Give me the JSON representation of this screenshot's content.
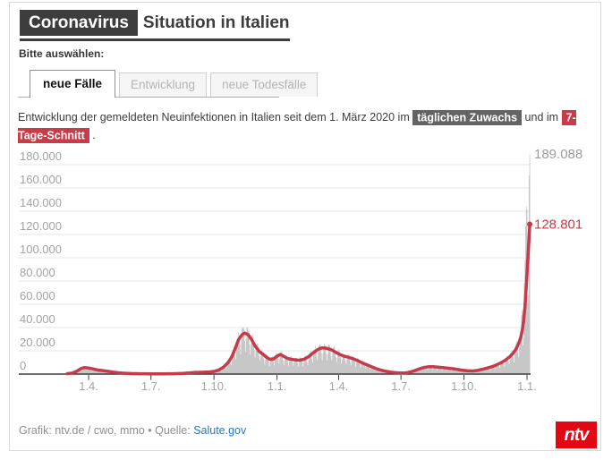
{
  "header": {
    "badge": "Coronavirus",
    "title": "Situation in Italien"
  },
  "prompt": "Bitte auswählen:",
  "tabs": [
    {
      "label": "neue Fälle",
      "active": true
    },
    {
      "label": "Entwicklung",
      "active": false
    },
    {
      "label": "neue Todesfälle",
      "active": false
    }
  ],
  "description": {
    "segments": [
      {
        "text": "Entwicklung der gemeldeten Neuinfektionen in Italien seit dem 1. März 2020 im "
      },
      {
        "highlight": "täglichen Zuwachs",
        "color": "#636363"
      },
      {
        "text": " und im "
      },
      {
        "highlight": "7-Tage-Schnitt",
        "color": "#c93b47"
      },
      {
        "text": " ."
      }
    ]
  },
  "chart_data": {
    "type": "bar",
    "subtype": "daily-bars-with-7day-average-line",
    "x_unit": "days since 1. März 2020",
    "x_domain": [
      0,
      675
    ],
    "ylim": [
      0,
      190000
    ],
    "grid": true,
    "y_ticks": [
      {
        "value": 0,
        "label": "0"
      },
      {
        "value": 20000,
        "label": "20.000"
      },
      {
        "value": 40000,
        "label": "40.000"
      },
      {
        "value": 60000,
        "label": "60.000"
      },
      {
        "value": 80000,
        "label": "80.000"
      },
      {
        "value": 100000,
        "label": "100.000"
      },
      {
        "value": 120000,
        "label": "120.000"
      },
      {
        "value": 140000,
        "label": "140.000"
      },
      {
        "value": 160000,
        "label": "160.000"
      },
      {
        "value": 180000,
        "label": "180.000"
      }
    ],
    "x_ticks": [
      {
        "day": 31,
        "label": "1.4."
      },
      {
        "day": 122,
        "label": "1.7."
      },
      {
        "day": 214,
        "label": "1.10."
      },
      {
        "day": 306,
        "label": "1.1."
      },
      {
        "day": 396,
        "label": "1.4."
      },
      {
        "day": 487,
        "label": "1.7."
      },
      {
        "day": 579,
        "label": "1.10."
      },
      {
        "day": 671,
        "label": "1.1."
      }
    ],
    "series": [
      {
        "name": "täglicher Zuwachs",
        "render": "bar",
        "color": "#c7c7c7",
        "note": "daily values approximated from 7-day average with weekday reporting pattern; last 13 days explicit",
        "final_daily": {
          "start_day": 663,
          "values": [
            50599,
            54762,
            24883,
            30810,
            78313,
            98020,
            126888,
            144243,
            141262,
            61046,
            68052,
            170844,
            189088
          ]
        },
        "weekday_factors": [
          0.78,
          0.56,
          0.82,
          1.1,
          1.16,
          1.18,
          1.12
        ],
        "noise_range": [
          0.93,
          1.07
        ]
      },
      {
        "name": "7-Tage-Schnitt",
        "render": "line",
        "color": "#c43b4b",
        "anchors": [
          [
            0,
            350
          ],
          [
            8,
            900
          ],
          [
            14,
            2600
          ],
          [
            20,
            4800
          ],
          [
            25,
            5600
          ],
          [
            31,
            5200
          ],
          [
            38,
            4400
          ],
          [
            45,
            3400
          ],
          [
            52,
            3000
          ],
          [
            61,
            2200
          ],
          [
            68,
            1600
          ],
          [
            76,
            1000
          ],
          [
            84,
            700
          ],
          [
            92,
            450
          ],
          [
            107,
            280
          ],
          [
            122,
            210
          ],
          [
            137,
            200
          ],
          [
            152,
            280
          ],
          [
            160,
            420
          ],
          [
            168,
            560
          ],
          [
            176,
            950
          ],
          [
            184,
            1350
          ],
          [
            196,
            1550
          ],
          [
            207,
            1800
          ],
          [
            214,
            2300
          ],
          [
            221,
            3500
          ],
          [
            228,
            6000
          ],
          [
            235,
            10200
          ],
          [
            240,
            14800
          ],
          [
            245,
            22000
          ],
          [
            250,
            29800
          ],
          [
            255,
            33900
          ],
          [
            259,
            35200
          ],
          [
            264,
            33800
          ],
          [
            269,
            29600
          ],
          [
            274,
            24200
          ],
          [
            280,
            19600
          ],
          [
            286,
            16800
          ],
          [
            291,
            14300
          ],
          [
            296,
            12600
          ],
          [
            301,
            13000
          ],
          [
            306,
            15400
          ],
          [
            311,
            16900
          ],
          [
            316,
            15200
          ],
          [
            322,
            13300
          ],
          [
            330,
            12400
          ],
          [
            338,
            11900
          ],
          [
            345,
            12600
          ],
          [
            352,
            14900
          ],
          [
            359,
            18300
          ],
          [
            366,
            21300
          ],
          [
            372,
            22600
          ],
          [
            378,
            22200
          ],
          [
            384,
            21200
          ],
          [
            390,
            19400
          ],
          [
            397,
            17000
          ],
          [
            403,
            15600
          ],
          [
            410,
            14500
          ],
          [
            417,
            13200
          ],
          [
            424,
            11500
          ],
          [
            431,
            9500
          ],
          [
            438,
            7800
          ],
          [
            445,
            6100
          ],
          [
            452,
            4400
          ],
          [
            459,
            3200
          ],
          [
            466,
            2300
          ],
          [
            473,
            1600
          ],
          [
            480,
            1150
          ],
          [
            487,
            950
          ],
          [
            492,
            900
          ],
          [
            497,
            1300
          ],
          [
            503,
            2200
          ],
          [
            509,
            3400
          ],
          [
            515,
            4700
          ],
          [
            521,
            5700
          ],
          [
            527,
            6300
          ],
          [
            533,
            6400
          ],
          [
            539,
            6100
          ],
          [
            545,
            5700
          ],
          [
            551,
            5400
          ],
          [
            557,
            5000
          ],
          [
            563,
            4600
          ],
          [
            569,
            4000
          ],
          [
            577,
            3300
          ],
          [
            585,
            2800
          ],
          [
            592,
            2700
          ],
          [
            598,
            3100
          ],
          [
            604,
            3900
          ],
          [
            610,
            4700
          ],
          [
            616,
            5700
          ],
          [
            622,
            6800
          ],
          [
            628,
            8300
          ],
          [
            634,
            10000
          ],
          [
            640,
            12200
          ],
          [
            646,
            15000
          ],
          [
            651,
            18200
          ],
          [
            655,
            21500
          ],
          [
            659,
            26500
          ],
          [
            662,
            32000
          ],
          [
            664,
            37500
          ],
          [
            666,
            45500
          ],
          [
            668,
            58000
          ],
          [
            670,
            76000
          ],
          [
            672,
            97000
          ],
          [
            674,
            117000
          ],
          [
            675,
            128801
          ]
        ]
      }
    ],
    "annotations": [
      {
        "label": "189.088",
        "day": 675,
        "value": 189088,
        "color": "#9b9b9b"
      },
      {
        "label": "128.801",
        "day": 675,
        "value": 128801,
        "color": "#c43b4b"
      }
    ]
  },
  "footer": {
    "credit": "Grafik: ntv.de / cwo, mmo • Quelle: ",
    "source_link": "Salute.gov"
  },
  "logo": {
    "text": "ntv",
    "color": "#e30613"
  },
  "colors": {
    "dark": "#3d3d3d",
    "grid": "#e4e4e4",
    "axis": "#3a3a3a",
    "axis_label": "#a3a3a3",
    "bar": "#c7c7c7",
    "line": "#c43b4b",
    "card_border": "#d9d9d9"
  }
}
